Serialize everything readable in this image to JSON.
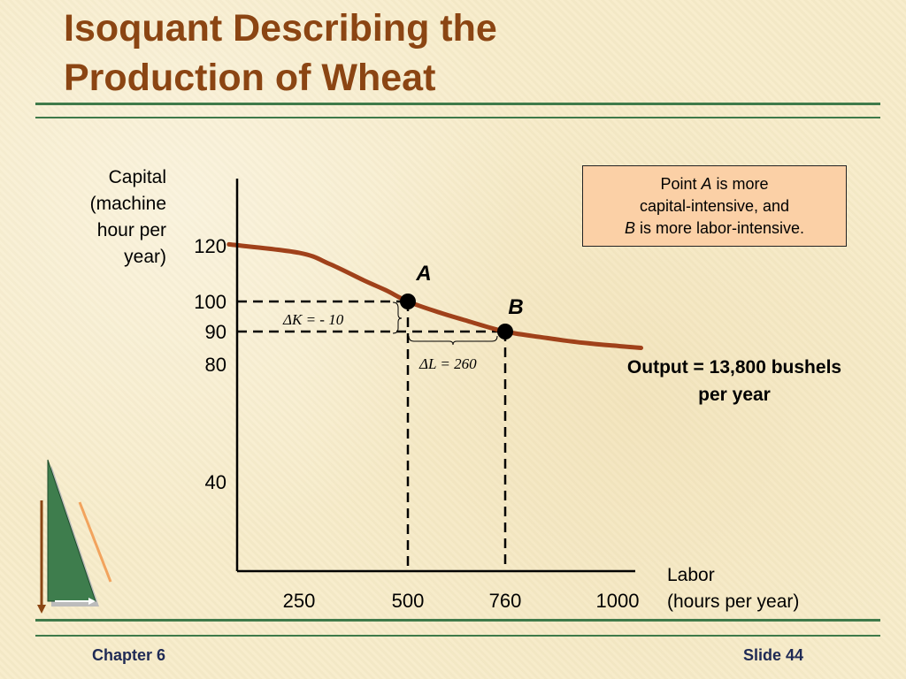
{
  "slide": {
    "title_line1": "Isoquant Describing the",
    "title_line2": "Production of Wheat",
    "footer_left": "Chapter 6",
    "footer_right": "Slide 44"
  },
  "note": {
    "part1": "Point ",
    "a": "A",
    "part2": " is more",
    "line2": "capital-intensive, and",
    "b": "B",
    "part3": " is more labor-intensive."
  },
  "output_line1": "Output = 13,800 bushels",
  "output_line2": "per year",
  "colors": {
    "curve": "#a0411a",
    "title": "#8b4513",
    "rule": "#3f7a4a",
    "note_bg": "#fbd0a6"
  },
  "chart_data": {
    "type": "line",
    "title": "Isoquant Describing the Production of Wheat",
    "ylabel_lines": [
      "Capital",
      "(machine",
      "hour per",
      "year)"
    ],
    "xlabel_lines": [
      "Labor",
      "(hours per year)"
    ],
    "x_ticks": [
      "250",
      "500",
      "760",
      "1000"
    ],
    "y_ticks": [
      "120",
      "100",
      "90",
      "80",
      "40"
    ],
    "series": [
      {
        "name": "Output = 13,800 bushels per year",
        "x": [
          170,
          250,
          320,
          400,
          450,
          500,
          580,
          660,
          760,
          850,
          930,
          1000,
          1050
        ],
        "y": [
          120.5,
          117.5,
          113.5,
          107.5,
          104,
          100,
          96.5,
          93.5,
          90,
          88,
          86.5,
          85.6,
          85
        ]
      }
    ],
    "points": [
      {
        "label": "A",
        "x": 500,
        "y": 100
      },
      {
        "label": "B",
        "x": 760,
        "y": 90
      }
    ],
    "annotations": {
      "delta_k": "ΔK = - 10",
      "delta_l": "ΔL = 260"
    }
  }
}
